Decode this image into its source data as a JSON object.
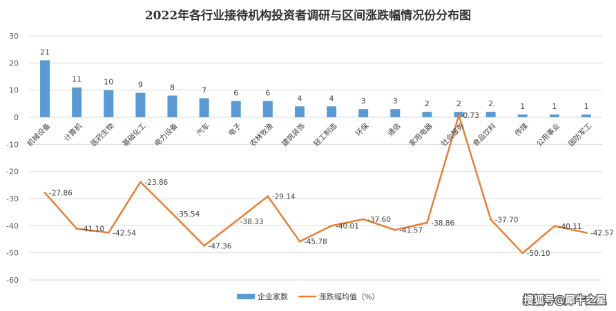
{
  "chart_data": {
    "type": "bar",
    "title": "2022年各行业接待机构投资者调研与区间涨跌幅情况份分布图",
    "categories": [
      "机械设备",
      "计算机",
      "医药生物",
      "基础化工",
      "电力设备",
      "汽车",
      "电子",
      "农林牧渔",
      "建筑装饰",
      "轻工制造",
      "环保",
      "通信",
      "家用电器",
      "社会服务",
      "食品饮料",
      "传媒",
      "公用事业",
      "国防军工"
    ],
    "ylim": [
      -60,
      30
    ],
    "yticks": [
      30,
      20,
      10,
      0,
      -10,
      -20,
      -30,
      -40,
      -50,
      -60
    ],
    "grid": true,
    "legend_position": "bottom",
    "series": [
      {
        "name": "企业家数",
        "kind": "bar",
        "color": "#5b9bd5",
        "values": [
          21,
          11,
          10,
          9,
          8,
          7,
          6,
          6,
          4,
          4,
          3,
          3,
          2,
          2,
          2,
          1,
          1,
          1
        ],
        "labels": [
          "21",
          "11",
          "10",
          "9",
          "8",
          "7",
          "6",
          "6",
          "4",
          "4",
          "3",
          "3",
          "2",
          "2",
          "2",
          "1",
          "1",
          "1"
        ]
      },
      {
        "name": "涨跌幅均值（%）",
        "kind": "line",
        "color": "#ed7d31",
        "values": [
          -27.86,
          -41.1,
          -42.54,
          -23.86,
          -35.54,
          -47.36,
          -38.33,
          -29.14,
          -45.78,
          -40.01,
          -37.6,
          -41.57,
          -38.86,
          0.73,
          -37.7,
          -50.1,
          -40.11,
          -42.57
        ],
        "labels": [
          "-27.86",
          "-41.10",
          "-42.54",
          "-23.86",
          "-35.54",
          "-47.36",
          "-38.33",
          "-29.14",
          "-45.78",
          "-40.01",
          "-37.60",
          "-41.57",
          "-38.86",
          "0.73",
          "-37.70",
          "-50.10",
          "-40.11",
          "-42.57"
        ]
      }
    ]
  },
  "watermark": "搜狐号@犀牛之星"
}
